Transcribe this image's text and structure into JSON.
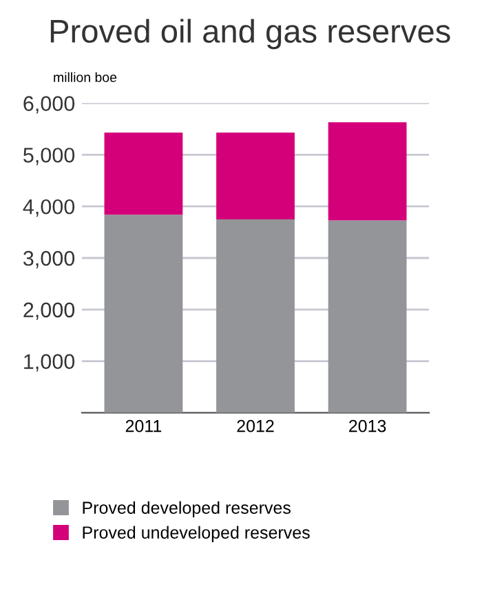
{
  "chart_data": {
    "type": "bar",
    "title": "Proved oil and gas reserves",
    "ylabel": "million boe",
    "categories": [
      "2011",
      "2012",
      "2013"
    ],
    "series": [
      {
        "name": "Proved developed reserves",
        "color": "#939598",
        "values": [
          3840,
          3750,
          3730
        ]
      },
      {
        "name": "Proved undeveloped reserves",
        "color": "#d4007a",
        "values": [
          1590,
          1680,
          1900
        ]
      }
    ],
    "stacked": true,
    "ylim": [
      0,
      6000
    ],
    "yticks": [
      {
        "value": 1000,
        "label": "1,000"
      },
      {
        "value": 2000,
        "label": "2,000"
      },
      {
        "value": 3000,
        "label": "3,000"
      },
      {
        "value": 4000,
        "label": "4,000"
      },
      {
        "value": 5000,
        "label": "5,000"
      },
      {
        "value": 6000,
        "label": "6,000"
      }
    ],
    "grid": "y",
    "legend": "bottom"
  }
}
